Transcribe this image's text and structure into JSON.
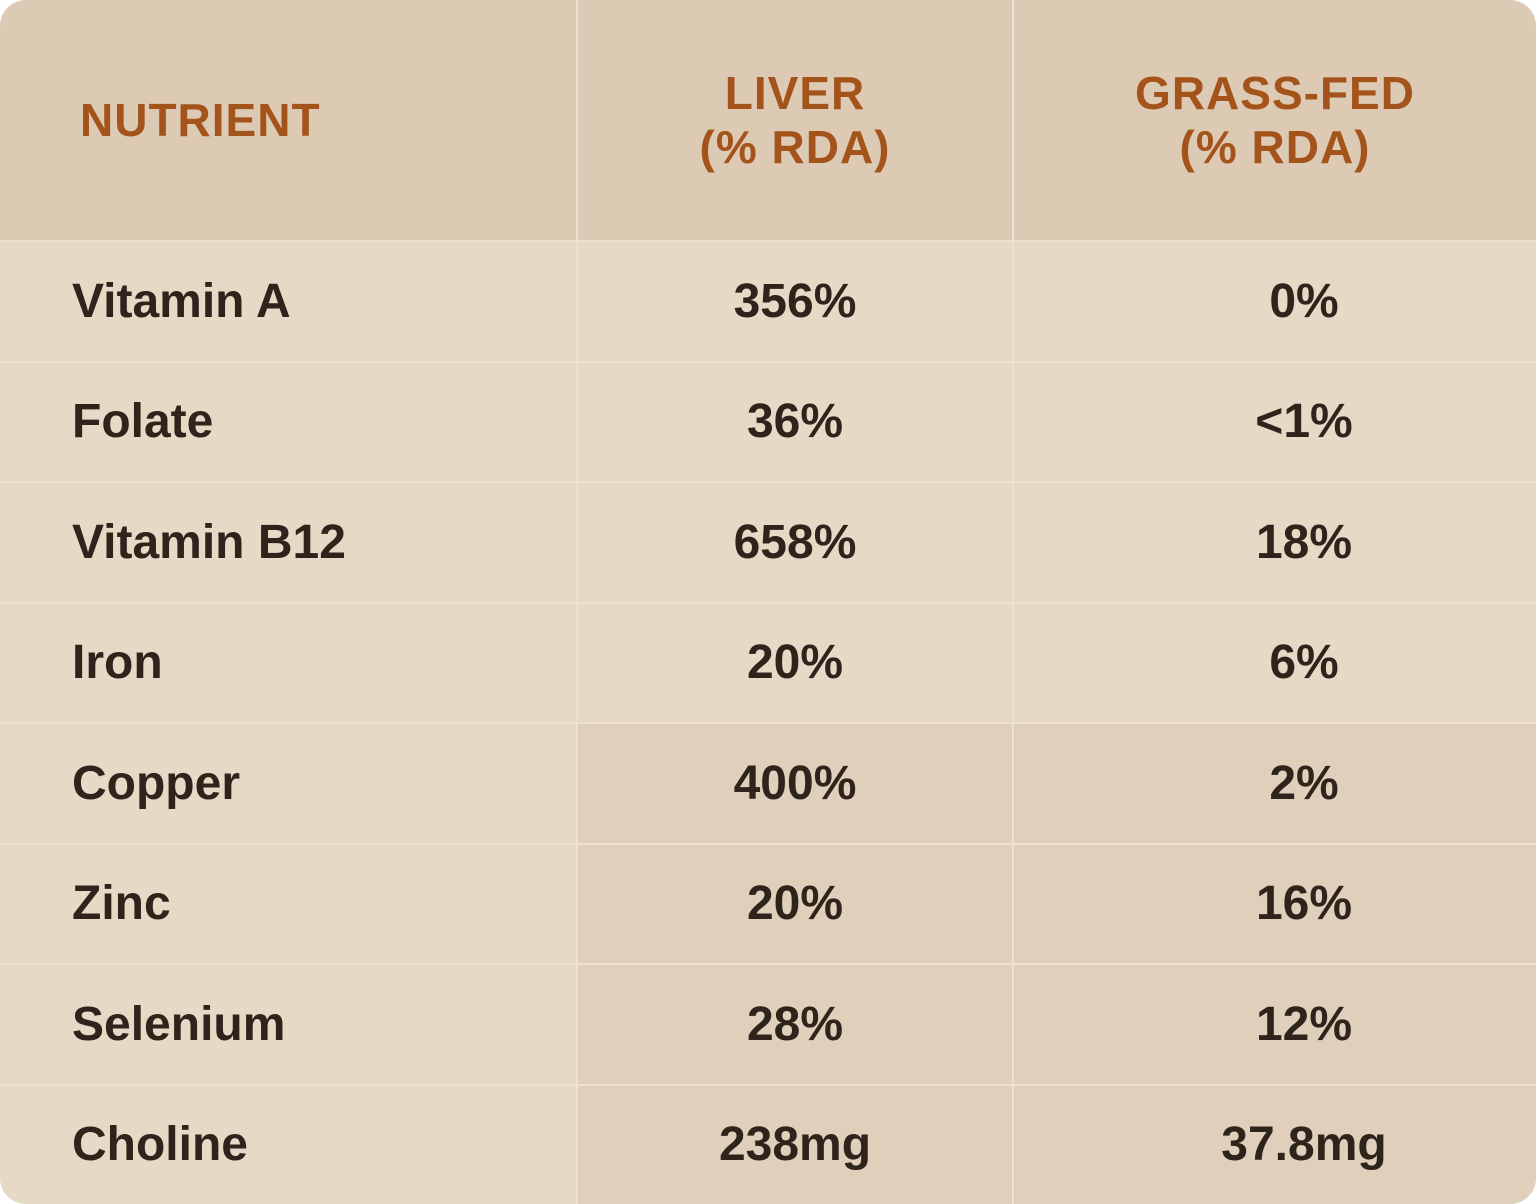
{
  "header": {
    "columns": [
      [
        "NUTRIENT"
      ],
      [
        "LIVER",
        "(% RDA)"
      ],
      [
        "GRASS-FED",
        "(% RDA)"
      ]
    ]
  },
  "table": {
    "rows": [
      [
        "Vitamin A",
        "356%",
        "0%"
      ],
      [
        "Folate",
        "36%",
        "<1%"
      ],
      [
        "Vitamin B12",
        "658%",
        "18%"
      ],
      [
        "Iron",
        "20%",
        "6%"
      ],
      [
        "Copper",
        "400%",
        "2%"
      ],
      [
        "Zinc",
        "20%",
        "16%"
      ],
      [
        "Selenium",
        "28%",
        "12%"
      ],
      [
        "Choline",
        "238mg",
        "37.8mg"
      ]
    ]
  }
}
